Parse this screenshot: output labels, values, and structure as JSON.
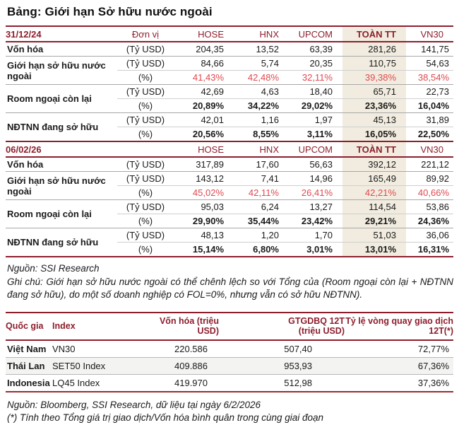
{
  "title": "Bảng: Giới hạn Sở hữu nước ngoài",
  "colors": {
    "maroon": "#8d1f2d",
    "red_pct": "#e0494f",
    "beige_col": "#f1ecdf",
    "stripe": "#f3f3f2"
  },
  "table1": {
    "sections": [
      {
        "date": "31/12/24",
        "unit_header": "Đơn vị",
        "columns": [
          "HOSE",
          "HNX",
          "UPCOM",
          "TOÀN TT",
          "VN30"
        ],
        "groups": [
          {
            "label": "Vốn hóa",
            "rows": [
              {
                "unit": "(Tỷ USD)",
                "values": [
                  "204,35",
                  "13,52",
                  "63,39",
                  "281,26",
                  "141,75"
                ]
              }
            ]
          },
          {
            "label": "Giới hạn sở hữu nước ngoài",
            "rows": [
              {
                "unit": "(Tỷ USD)",
                "values": [
                  "84,66",
                  "5,74",
                  "20,35",
                  "110,75",
                  "54,63"
                ]
              },
              {
                "unit": "(%)",
                "values": [
                  "41,43%",
                  "42,48%",
                  "32,11%",
                  "39,38%",
                  "38,54%"
                ]
              }
            ]
          },
          {
            "label": "Room ngoại còn lại",
            "rows": [
              {
                "unit": "(Tỷ USD)",
                "values": [
                  "42,69",
                  "4,63",
                  "18,40",
                  "65,71",
                  "22,73"
                ]
              },
              {
                "unit": "(%)",
                "values": [
                  "20,89%",
                  "34,22%",
                  "29,02%",
                  "23,36%",
                  "16,04%"
                ]
              }
            ]
          },
          {
            "label": "NĐTNN đang sở hữu",
            "rows": [
              {
                "unit": "(Tỷ USD)",
                "values": [
                  "42,01",
                  "1,16",
                  "1,97",
                  "45,13",
                  "31,89"
                ]
              },
              {
                "unit": "(%)",
                "values": [
                  "20,56%",
                  "8,55%",
                  "3,11%",
                  "16,05%",
                  "22,50%"
                ]
              }
            ]
          }
        ]
      },
      {
        "date": "06/02/26",
        "unit_header": "",
        "columns": [
          "HOSE",
          "HNX",
          "UPCOM",
          "TOÀN TT",
          "VN30"
        ],
        "groups": [
          {
            "label": "Vốn hóa",
            "rows": [
              {
                "unit": "(Tỷ USD)",
                "values": [
                  "317,89",
                  "17,60",
                  "56,63",
                  "392,12",
                  "221,12"
                ]
              }
            ]
          },
          {
            "label": "Giới hạn sở hữu nước ngoài",
            "rows": [
              {
                "unit": "(Tỷ USD)",
                "values": [
                  "143,12",
                  "7,41",
                  "14,96",
                  "165,49",
                  "89,92"
                ]
              },
              {
                "unit": "(%)",
                "values": [
                  "45,02%",
                  "42,11%",
                  "26,41%",
                  "42,21%",
                  "40,66%"
                ]
              }
            ]
          },
          {
            "label": "Room ngoại còn lại",
            "rows": [
              {
                "unit": "(Tỷ USD)",
                "values": [
                  "95,03",
                  "6,24",
                  "13,27",
                  "114,54",
                  "53,86"
                ]
              },
              {
                "unit": "(%)",
                "values": [
                  "29,90%",
                  "35,44%",
                  "23,42%",
                  "29,21%",
                  "24,36%"
                ]
              }
            ]
          },
          {
            "label": "NĐTNN đang sở hữu",
            "rows": [
              {
                "unit": "(Tỷ USD)",
                "values": [
                  "48,13",
                  "1,20",
                  "1,70",
                  "51,03",
                  "36,06"
                ]
              },
              {
                "unit": "(%)",
                "values": [
                  "15,14%",
                  "6,80%",
                  "3,01%",
                  "13,01%",
                  "16,31%"
                ]
              }
            ]
          }
        ]
      }
    ]
  },
  "notes1": {
    "source": "Nguồn: SSI Research",
    "note": "Ghi chú: Giới hạn sở hữu nước ngoài có thể chênh lệch so với Tổng của (Room ngoại còn lại + NĐTNN đang sở hữu), do một số doanh nghiệp có FOL=0%, nhưng vẫn có sở hữu NĐTNN)."
  },
  "table2": {
    "header": {
      "country": "Quốc gia",
      "index": "Index",
      "cap": "Vốn hóa (triệu USD)",
      "gtgd_line1": "GTGDBQ 12T",
      "gtgd_line2": "(triệu USD)",
      "turn_line1": "Tỷ lệ vòng quay giao dịch",
      "turn_line2": "12T(*)"
    },
    "rows": [
      {
        "country": "Việt Nam",
        "index": "VN30",
        "cap": "220.586",
        "gtgd": "507,40",
        "turnover": "72,77%"
      },
      {
        "country": "Thái Lan",
        "index": "SET50 Index",
        "cap": "409.886",
        "gtgd": "953,93",
        "turnover": "67,36%"
      },
      {
        "country": "Indonesia",
        "index": "LQ45 Index",
        "cap": "419.970",
        "gtgd": "512,98",
        "turnover": "37,36%"
      }
    ]
  },
  "notes2": {
    "source": "Nguồn: Bloomberg, SSI Research, dữ liệu tại ngày 6/2/2026",
    "note": "(*) Tính theo Tổng giá trị giao dịch/Vốn hóa bình quân trong cùng giai đoạn"
  }
}
